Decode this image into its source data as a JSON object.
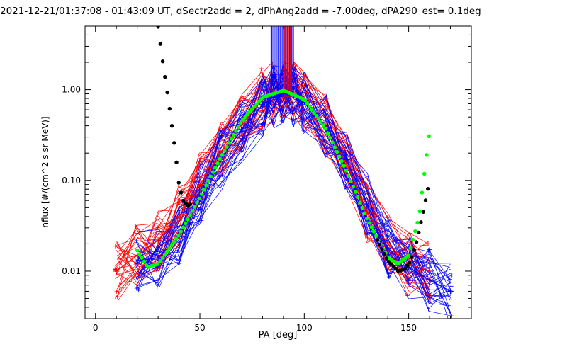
{
  "chart_data": {
    "type": "line",
    "title": "2021-12-21/01:37:08 - 01:43:09 UT, dSectr2add = 2, dPhAng2add = -7.00deg, dPA290_est=   0.1deg",
    "xlabel": "PA [deg]",
    "ylabel": "nflux [#/(cm^2 s sr MeV)]",
    "xlim": [
      -5,
      180
    ],
    "ylim": [
      0.003,
      5.0
    ],
    "yscale": "log",
    "grid": false,
    "x_ticks": [
      {
        "v": 0,
        "label": "0"
      },
      {
        "v": 50,
        "label": "50"
      },
      {
        "v": 100,
        "label": "100"
      },
      {
        "v": 150,
        "label": "150"
      }
    ],
    "y_ticks": [
      {
        "v": 0.01,
        "label": "0.01"
      },
      {
        "v": 0.1,
        "label": "0.10"
      },
      {
        "v": 1,
        "label": "1.00"
      }
    ],
    "colors": {
      "red": "#ff0000",
      "blue": "#0000ff",
      "green": "#00ff00",
      "black": "#000000"
    },
    "series": [
      {
        "color": "red",
        "marker": "plus",
        "style": "thin-lines",
        "x": [
          10,
          20,
          30,
          40,
          50,
          60,
          70,
          80,
          85,
          90,
          95,
          100,
          110,
          120,
          130,
          140,
          150,
          160
        ],
        "y": [
          0.01,
          0.015,
          0.022,
          0.04,
          0.09,
          0.2,
          0.42,
          0.78,
          0.92,
          0.95,
          0.92,
          0.75,
          0.4,
          0.16,
          0.045,
          0.02,
          0.012,
          0.01
        ]
      },
      {
        "color": "blue",
        "marker": "plus",
        "style": "thin-lines",
        "x": [
          20,
          30,
          40,
          50,
          60,
          70,
          80,
          85,
          90,
          95,
          100,
          110,
          120,
          130,
          140,
          150,
          160,
          170
        ],
        "y": [
          0.013,
          0.014,
          0.024,
          0.07,
          0.17,
          0.36,
          0.68,
          0.82,
          0.9,
          0.86,
          0.72,
          0.4,
          0.17,
          0.055,
          0.018,
          0.011,
          0.008,
          0.006
        ]
      },
      {
        "color": "green",
        "marker": "dot",
        "style": "thick",
        "x": [
          20,
          25,
          30,
          40,
          50,
          60,
          70,
          80,
          90,
          100,
          110,
          120,
          130,
          140,
          145,
          150,
          155,
          160
        ],
        "y": [
          0.017,
          0.011,
          0.012,
          0.025,
          0.065,
          0.18,
          0.45,
          0.82,
          0.98,
          0.78,
          0.38,
          0.13,
          0.038,
          0.014,
          0.012,
          0.015,
          0.04,
          0.35
        ]
      },
      {
        "color": "black",
        "marker": "dot",
        "style": "thick",
        "x": [
          30,
          32,
          35,
          38,
          40,
          42,
          44,
          46
        ],
        "y": [
          5.0,
          2.2,
          0.75,
          0.23,
          0.09,
          0.06,
          0.053,
          0.055
        ]
      },
      {
        "color": "black",
        "marker": "dot",
        "style": "thick",
        "x": [
          135,
          140,
          145,
          148,
          151,
          154,
          157,
          160
        ],
        "y": [
          0.022,
          0.013,
          0.01,
          0.0105,
          0.013,
          0.022,
          0.045,
          0.1
        ]
      }
    ]
  }
}
